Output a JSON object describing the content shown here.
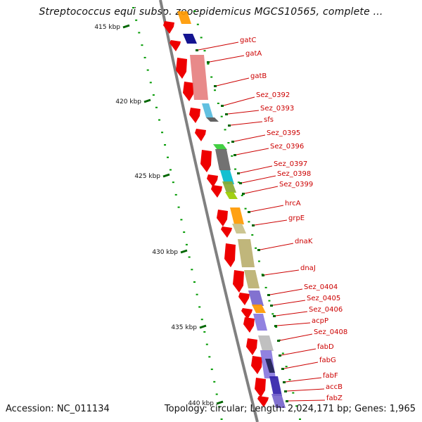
{
  "title": "Streptococcus equi subsp. zooepidemicus MGCS10565, complete ...",
  "footer": {
    "accession": "Accession: NC_011134",
    "summary": "Topology: circular; Length: 2,024,171 bp; Genes: 1,965"
  },
  "scale": {
    "ticks": [
      "415 kbp",
      "420 kbp",
      "425 kbp",
      "430 kbp",
      "435 kbp",
      "440 kbp"
    ]
  },
  "genes": [
    {
      "name": "gatC"
    },
    {
      "name": "gatA"
    },
    {
      "name": "gatB"
    },
    {
      "name": "Sez_0392"
    },
    {
      "name": "Sez_0393"
    },
    {
      "name": "sfs"
    },
    {
      "name": "Sez_0395"
    },
    {
      "name": "Sez_0396"
    },
    {
      "name": "Sez_0397"
    },
    {
      "name": "Sez_0398"
    },
    {
      "name": "Sez_0399"
    },
    {
      "name": "hrcA"
    },
    {
      "name": "grpE"
    },
    {
      "name": "dnaK"
    },
    {
      "name": "dnaJ"
    },
    {
      "name": "Sez_0404"
    },
    {
      "name": "Sez_0405"
    },
    {
      "name": "Sez_0406"
    },
    {
      "name": "acpP"
    },
    {
      "name": "Sez_0408"
    },
    {
      "name": "fabD"
    },
    {
      "name": "fabG"
    },
    {
      "name": "fabF"
    },
    {
      "name": "accB"
    },
    {
      "name": "fabZ"
    }
  ],
  "colors": {
    "backbone": "#808080",
    "gene_arrow": "#ee0000",
    "label": "#cc0000",
    "dots": "#009900",
    "ticks": "#006600"
  }
}
